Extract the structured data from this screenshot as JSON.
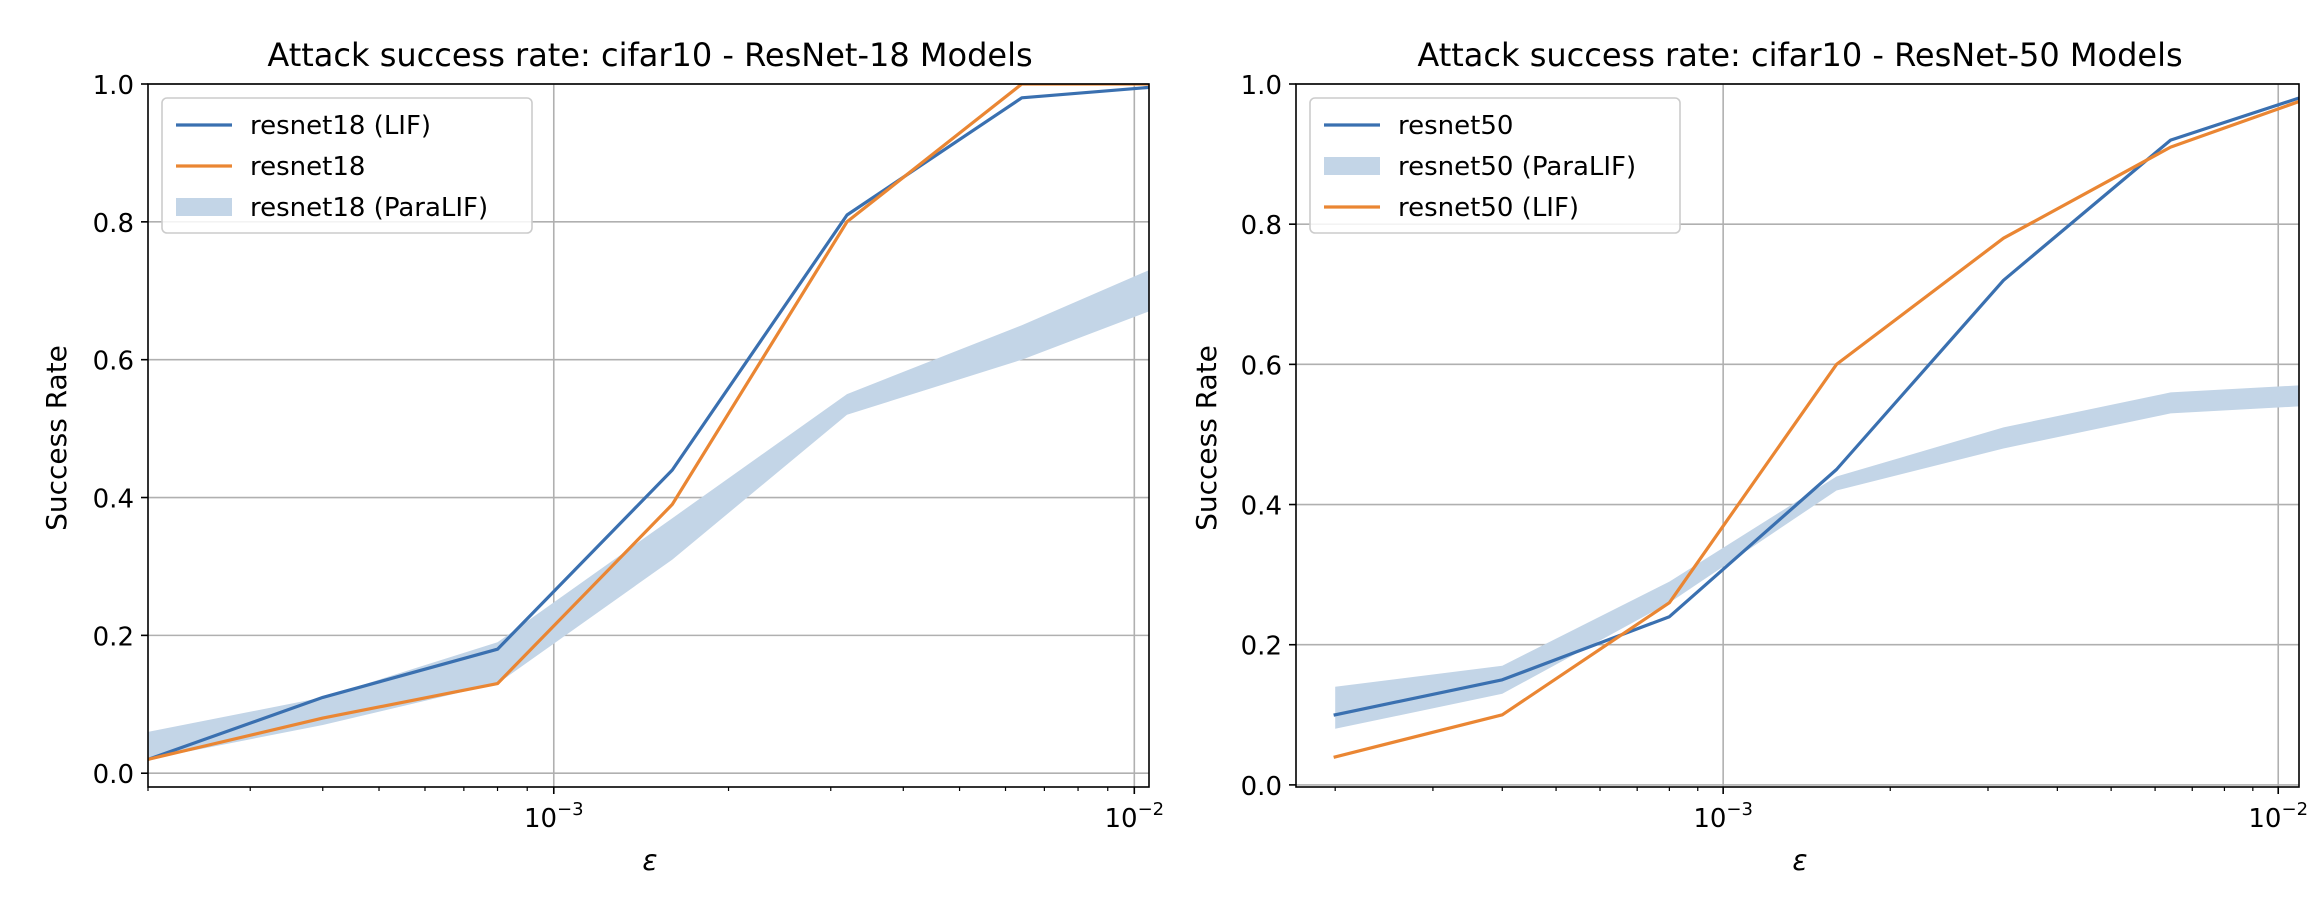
{
  "chart_data": [
    {
      "type": "line",
      "title": "Attack success rate: cifar10 - ResNet-18 Models",
      "xlabel": "ε",
      "ylabel": "Success Rate",
      "xscale": "log",
      "xlim": [
        0.0002,
        0.0106
      ],
      "ylim": [
        -0.02,
        1.0
      ],
      "x_ticks": [
        {
          "value": 0.001,
          "base": "10",
          "exponent": "−3"
        },
        {
          "value": 0.01,
          "base": "10",
          "exponent": "−2"
        }
      ],
      "y_ticks": [
        "0.0",
        "0.2",
        "0.4",
        "0.6",
        "0.8",
        "1.0"
      ],
      "grid": true,
      "legend_position": "upper left",
      "x": [
        0.0002,
        0.0004,
        0.0008,
        0.0016,
        0.0032,
        0.0064,
        0.0106
      ],
      "series": [
        {
          "name": "resnet18 (LIF)",
          "kind": "line",
          "color": "#3a70b0",
          "values": [
            0.02,
            0.11,
            0.18,
            0.44,
            0.81,
            0.98,
            0.995
          ]
        },
        {
          "name": "resnet18",
          "kind": "line",
          "color": "#ea8633",
          "values": [
            0.02,
            0.08,
            0.13,
            0.39,
            0.8,
            1.0,
            1.0
          ]
        },
        {
          "name": "resnet18 (ParaLIF)",
          "kind": "band",
          "color": "#c3d5e7",
          "lower": [
            0.02,
            0.07,
            0.13,
            0.31,
            0.52,
            0.6,
            0.67
          ],
          "upper": [
            0.06,
            0.11,
            0.19,
            0.37,
            0.55,
            0.65,
            0.73
          ]
        }
      ]
    },
    {
      "type": "line",
      "title": "Attack success rate: cifar10 - ResNet-50 Models",
      "xlabel": "ε",
      "ylabel": "Success Rate",
      "xscale": "log",
      "xlim": [
        0.00017,
        0.0109
      ],
      "ylim": [
        -0.003,
        1.0
      ],
      "x_ticks": [
        {
          "value": 0.001,
          "base": "10",
          "exponent": "−3"
        },
        {
          "value": 0.01,
          "base": "10",
          "exponent": "−2"
        }
      ],
      "y_ticks": [
        "0.0",
        "0.2",
        "0.4",
        "0.6",
        "0.8",
        "1.0"
      ],
      "grid": true,
      "legend_position": "upper left",
      "x": [
        0.0002,
        0.0004,
        0.0008,
        0.0016,
        0.0032,
        0.0064,
        0.0109
      ],
      "series": [
        {
          "name": "resnet50",
          "kind": "line",
          "color": "#3a70b0",
          "values": [
            0.1,
            0.15,
            0.24,
            0.45,
            0.72,
            0.92,
            0.98
          ]
        },
        {
          "name": "resnet50 (ParaLIF)",
          "kind": "band",
          "color": "#c3d5e7",
          "lower": [
            0.08,
            0.13,
            0.26,
            0.42,
            0.48,
            0.53,
            0.54
          ],
          "upper": [
            0.14,
            0.17,
            0.29,
            0.44,
            0.51,
            0.56,
            0.57
          ]
        },
        {
          "name": "resnet50 (LIF)",
          "kind": "line",
          "color": "#ea8633",
          "values": [
            0.04,
            0.1,
            0.26,
            0.6,
            0.78,
            0.91,
            0.975
          ]
        }
      ]
    }
  ]
}
